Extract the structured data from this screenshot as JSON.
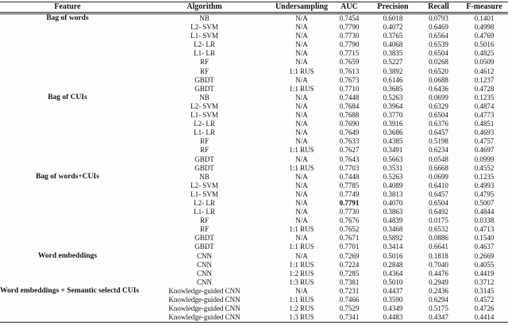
{
  "table": {
    "columns": [
      "Feature",
      "Algorithm",
      "Undersampling",
      "AUC",
      "Precision",
      "Recall",
      "F-measure"
    ],
    "groups": [
      {
        "feature": "Bag of words",
        "rows": [
          {
            "algorithm": "NB",
            "undersampling": "N/A",
            "auc": "0.7454",
            "precision": "0.6018",
            "recall": "0.0793",
            "fmeasure": "0.1401"
          },
          {
            "algorithm": "L2- SVM",
            "undersampling": "N/A",
            "auc": "0.7790",
            "precision": "0.4072",
            "recall": "0.6469",
            "fmeasure": "0.4998"
          },
          {
            "algorithm": "L1- SVM",
            "undersampling": "N/A",
            "auc": "0.7730",
            "precision": "0.3765",
            "recall": "0.6564",
            "fmeasure": "0.4769"
          },
          {
            "algorithm": "L2- LR",
            "undersampling": "N/A",
            "auc": "0.7790",
            "precision": "0.4068",
            "recall": "0.6539",
            "fmeasure": "0.5016"
          },
          {
            "algorithm": "L1- LR",
            "undersampling": "N/A",
            "auc": "0.7715",
            "precision": "0.3835",
            "recall": "0.6504",
            "fmeasure": "0.4825"
          },
          {
            "algorithm": "RF",
            "undersampling": "N/A",
            "auc": "0.7659",
            "precision": "0.5227",
            "recall": "0.0268",
            "fmeasure": "0.0509"
          },
          {
            "algorithm": "RF",
            "undersampling": "1:1 RUS",
            "auc": "0.7613",
            "precision": "0.3892",
            "recall": "0.6520",
            "fmeasure": "0.4612"
          },
          {
            "algorithm": "GBDT",
            "undersampling": "N/A",
            "auc": "0.7673",
            "precision": "0.6146",
            "recall": "0.0688",
            "fmeasure": "0.1237"
          },
          {
            "algorithm": "GBDT",
            "undersampling": "1:1 RUS",
            "auc": "0.7710",
            "precision": "0.3685",
            "recall": "0.6436",
            "fmeasure": "0.4728"
          }
        ]
      },
      {
        "feature": "Bag of CUIs",
        "rows": [
          {
            "algorithm": "NB",
            "undersampling": "N/A",
            "auc": "0.7448",
            "precision": "0.5263",
            "recall": "0.0699",
            "fmeasure": "0.1235"
          },
          {
            "algorithm": "L2- SVM",
            "undersampling": "N/A",
            "auc": "0.7684",
            "precision": "0.3964",
            "recall": "0.6329",
            "fmeasure": "0.4874"
          },
          {
            "algorithm": "L1- SVM",
            "undersampling": "N/A",
            "auc": "0.7688",
            "precision": "0.3770",
            "recall": "0.6504",
            "fmeasure": "0.4773"
          },
          {
            "algorithm": "L2- LR",
            "undersampling": "N/A",
            "auc": "0.7690",
            "precision": "0.3916",
            "recall": "0.6376",
            "fmeasure": "0.4851"
          },
          {
            "algorithm": "L1- LR",
            "undersampling": "N/A",
            "auc": "0.7649",
            "precision": "0.3686",
            "recall": "0.6457",
            "fmeasure": "0.4693"
          },
          {
            "algorithm": "RF",
            "undersampling": "N/A",
            "auc": "0.7633",
            "precision": "0.4385",
            "recall": "0.5198",
            "fmeasure": "0.4757"
          },
          {
            "algorithm": "RF",
            "undersampling": "1:1 RUS",
            "auc": "0.7627",
            "precision": "0.3491",
            "recall": "0.6234",
            "fmeasure": "0.4697"
          },
          {
            "algorithm": "GBDT",
            "undersampling": "N/A",
            "auc": "0.7643",
            "precision": "0.5663",
            "recall": "0.0548",
            "fmeasure": "0.0999"
          },
          {
            "algorithm": "GBDT",
            "undersampling": "1:1 RUS",
            "auc": "0.7703",
            "precision": "0.3531",
            "recall": "0.6668",
            "fmeasure": "0.4552"
          }
        ]
      },
      {
        "feature": "Bag of words+CUIs",
        "rows": [
          {
            "algorithm": "NB",
            "undersampling": "N/A",
            "auc": "0.7448",
            "precision": "0.5263",
            "recall": "0.0699",
            "fmeasure": "0.1235"
          },
          {
            "algorithm": "L2- SVM",
            "undersampling": "N/A",
            "auc": "0.7785",
            "precision": "0.4089",
            "recall": "0.6410",
            "fmeasure": "0.4993"
          },
          {
            "algorithm": "L1- SVM",
            "undersampling": "N/A",
            "auc": "0.7749",
            "precision": "0.3813",
            "recall": "0.6457",
            "fmeasure": "0.4795"
          },
          {
            "algorithm": "L2- LR",
            "undersampling": "N/A",
            "auc": "0.7791",
            "auc_bold": true,
            "precision": "0.4070",
            "recall": "0.6504",
            "fmeasure": "0.5007"
          },
          {
            "algorithm": "L1- LR",
            "undersampling": "N/A",
            "auc": "0.7730",
            "precision": "0.3863",
            "recall": "0.6492",
            "fmeasure": "0.4844"
          },
          {
            "algorithm": "RF",
            "undersampling": "N/A",
            "auc": "0.7676",
            "precision": "0.4839",
            "recall": "0.0175",
            "fmeasure": "0.0338"
          },
          {
            "algorithm": "RF",
            "undersampling": "1:1 RUS",
            "auc": "0.7652",
            "precision": "0.3468",
            "recall": "0.6532",
            "fmeasure": "0.4713"
          },
          {
            "algorithm": "GBDT",
            "undersampling": "N/A",
            "auc": "0.7671",
            "precision": "0.5892",
            "recall": "0.0886",
            "fmeasure": "0.1540"
          },
          {
            "algorithm": "GBDT",
            "undersampling": "1:1 RUS",
            "auc": "0.7701",
            "precision": "0.3414",
            "recall": "0.6641",
            "fmeasure": "0.4637"
          }
        ]
      },
      {
        "feature": "Word embeddings",
        "rows": [
          {
            "algorithm": "CNN",
            "undersampling": "N/A",
            "auc": "0.7269",
            "precision": "0.5016",
            "recall": "0.1818",
            "fmeasure": "0.2669"
          },
          {
            "algorithm": "CNN",
            "undersampling": "1:1 RUS",
            "auc": "0.7224",
            "precision": "0.2848",
            "recall": "0.7040",
            "fmeasure": "0.4055"
          },
          {
            "algorithm": "CNN",
            "undersampling": "1:2 RUS",
            "auc": "0.7285",
            "precision": "0.4364",
            "recall": "0.4476",
            "fmeasure": "0.4419"
          },
          {
            "algorithm": "CNN",
            "undersampling": "1:3 RUS",
            "auc": "0.7381",
            "precision": "0.5010",
            "recall": "0.2949",
            "fmeasure": "0.3712"
          }
        ]
      },
      {
        "feature": "Word embeddings + Semantic selectd CUIs",
        "rows": [
          {
            "algorithm": "Knowledge-guided CNN",
            "undersampling": "N/A",
            "auc": "0.7231",
            "precision": "0.4437",
            "recall": "0.2436",
            "fmeasure": "0.3145"
          },
          {
            "algorithm": "Knowledge-guided CNN",
            "undersampling": "1:1 RUS",
            "auc": "0.7466",
            "precision": "0.3590",
            "recall": "0.6294",
            "fmeasure": "0.4572"
          },
          {
            "algorithm": "Knowledge-guided CNN",
            "undersampling": "1:2 RUS",
            "auc": "0.7529",
            "precision": "0.4349",
            "recall": "0.5175",
            "fmeasure": "0.4726"
          },
          {
            "algorithm": "Knowledge-guided CNN",
            "undersampling": "1:3 RUS",
            "auc": "0.7341",
            "precision": "0.4483",
            "recall": "0.4347",
            "fmeasure": "0.4414"
          }
        ]
      }
    ]
  }
}
